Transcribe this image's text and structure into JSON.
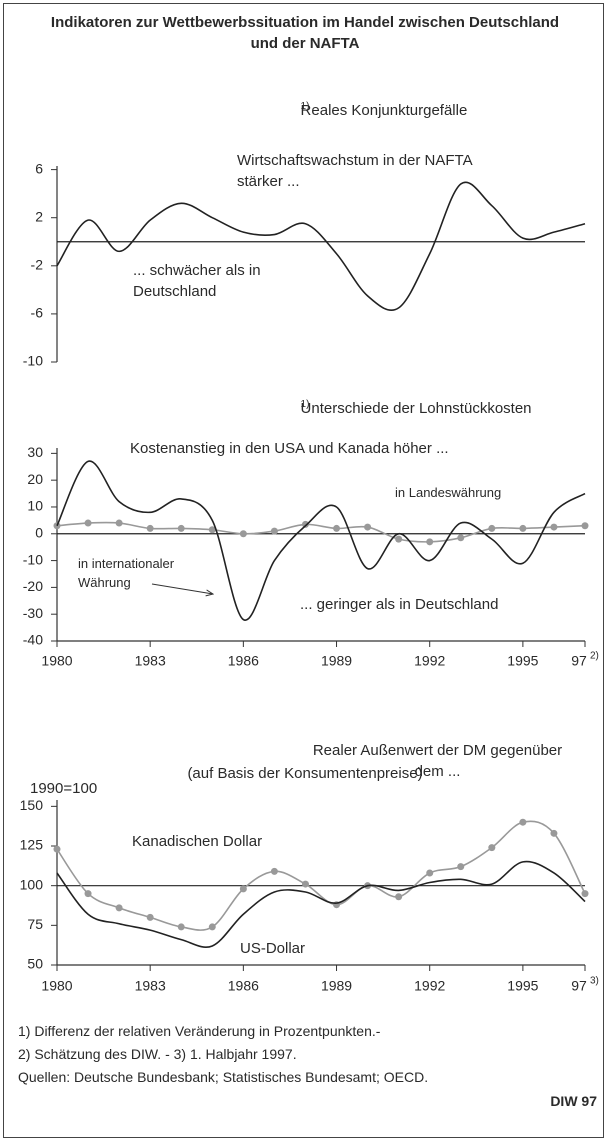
{
  "title": "Indikatoren zur Wettbewerbssituation im Handel zwischen Deutschland und der NAFTA",
  "chart_data": [
    {
      "type": "line",
      "title": "Reales Konjunkturgefälle",
      "title_note": "1)",
      "x": [
        1980,
        1981,
        1982,
        1983,
        1984,
        1985,
        1986,
        1987,
        1988,
        1989,
        1990,
        1991,
        1992,
        1993,
        1994,
        1995,
        1996,
        1997
      ],
      "values": [
        -2,
        1.8,
        -0.8,
        1.8,
        3.2,
        2,
        0.8,
        0.6,
        1.5,
        -1,
        -4.5,
        -5.5,
        -1,
        4.8,
        3,
        0.3,
        0.8,
        1.5
      ],
      "color": "#222222",
      "xlim": [
        1980,
        1997
      ],
      "ylim": [
        -10,
        6.3
      ],
      "yticks": [
        6,
        2,
        -2,
        -6,
        -10
      ],
      "reference_line": 0,
      "annotations": [
        "Wirtschaftswachstum in der NAFTA stärker ...",
        "... schwächer als in Deutschland"
      ]
    },
    {
      "type": "line",
      "title": "Unterschiede der Lohnstückkosten",
      "title_note": "1)",
      "x": [
        1980,
        1981,
        1982,
        1983,
        1984,
        1985,
        1986,
        1987,
        1988,
        1989,
        1990,
        1991,
        1992,
        1993,
        1994,
        1995,
        1996,
        1997
      ],
      "series": [
        {
          "name": "in Landeswährung",
          "color": "#999999",
          "markers": true,
          "values": [
            3,
            4,
            4,
            2,
            2,
            1.5,
            0,
            1,
            3.5,
            2,
            2.5,
            -2,
            -3,
            -1.5,
            2,
            2,
            2.5,
            3
          ]
        },
        {
          "name": "in internationaler Währung",
          "color": "#222222",
          "markers": false,
          "values": [
            3,
            27,
            12,
            8,
            13,
            5,
            -32,
            -10,
            3,
            10,
            -13,
            0,
            -10,
            4,
            -2,
            -11,
            8,
            15
          ]
        }
      ],
      "xlim": [
        1980,
        1997
      ],
      "xticks": [
        1980,
        1983,
        1986,
        1989,
        1992,
        1995,
        {
          "value": 1997,
          "label": "97"
        }
      ],
      "xtick_note": "2)",
      "ylim": [
        -40,
        32
      ],
      "yticks": [
        30,
        20,
        10,
        0,
        -10,
        -20,
        -30,
        -40
      ],
      "reference_line": 0,
      "annotations": [
        "Kostenanstieg in den USA und Kanada höher ...",
        "... geringer als in Deutschland"
      ]
    },
    {
      "type": "line",
      "title": "Realer Außenwert der DM gegenüber dem ...",
      "subtitle": "(auf Basis der Konsumentenpreise)",
      "y_label": "1990=100",
      "x": [
        1980,
        1981,
        1982,
        1983,
        1984,
        1985,
        1986,
        1987,
        1988,
        1989,
        1990,
        1991,
        1992,
        1993,
        1994,
        1995,
        1996,
        1997
      ],
      "series": [
        {
          "name": "Kanadischen Dollar",
          "color": "#999999",
          "markers": true,
          "values": [
            123,
            95,
            86,
            80,
            74,
            74,
            98,
            109,
            101,
            88,
            100,
            93,
            108,
            112,
            124,
            140,
            133,
            95
          ]
        },
        {
          "name": "US-Dollar",
          "color": "#222222",
          "markers": false,
          "values": [
            108,
            82,
            76,
            72,
            66,
            62,
            82,
            96,
            96,
            89,
            100,
            97,
            102,
            104,
            101,
            115,
            108,
            90
          ]
        }
      ],
      "xlim": [
        1980,
        1997
      ],
      "xticks": [
        1980,
        1983,
        1986,
        1989,
        1992,
        1995,
        {
          "value": 1997,
          "label": "97"
        }
      ],
      "xtick_note": "3)",
      "ylim": [
        50,
        154
      ],
      "yticks": [
        150,
        125,
        100,
        75,
        50
      ],
      "reference_line": 100
    }
  ],
  "footnotes": [
    "1) Differenz der relativen Veränderung in Prozentpunkten.-",
    "2) Schätzung des DIW. - 3) 1. Halbjahr 1997."
  ],
  "sources": "Quellen: Deutsche Bundesbank; Statistisches Bundesamt; OECD.",
  "publisher": "DIW 97"
}
